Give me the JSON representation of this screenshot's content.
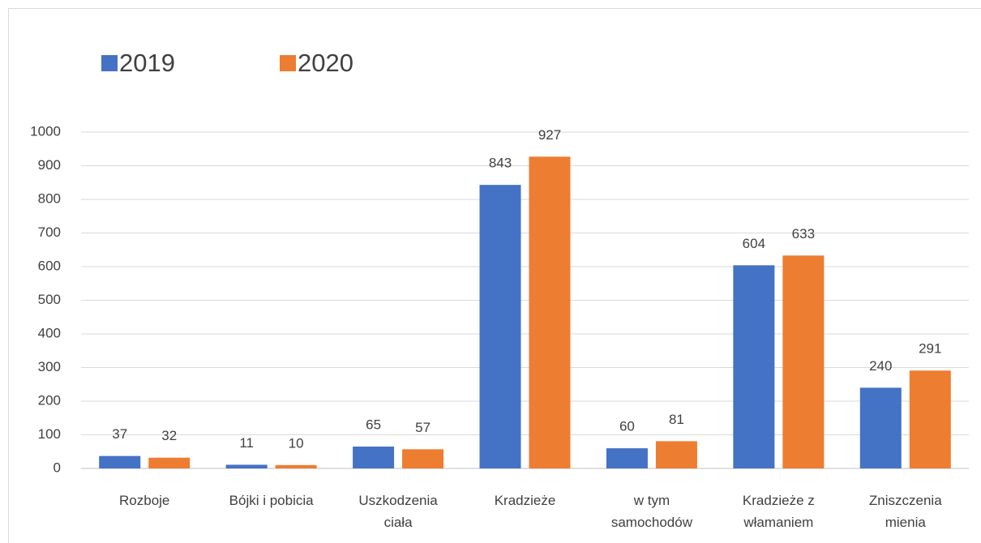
{
  "chart_data": {
    "type": "bar",
    "categories": [
      "Rozboje",
      "Bójki i pobicia",
      "Uszkodzenia ciała",
      "Kradzieże",
      "w tym samochodów",
      "Kradzieże z włamaniem",
      "Zniszczenia mienia"
    ],
    "series": [
      {
        "name": "2019",
        "color": "#4472c4",
        "values": [
          37,
          11,
          65,
          843,
          60,
          604,
          240
        ]
      },
      {
        "name": "2020",
        "color": "#ed7d31",
        "values": [
          32,
          10,
          57,
          927,
          81,
          633,
          291
        ]
      }
    ],
    "ylim": [
      0,
      1000
    ],
    "yticks": [
      0,
      100,
      200,
      300,
      400,
      500,
      600,
      700,
      800,
      900,
      1000
    ],
    "grid": true,
    "legend": "top-left"
  }
}
